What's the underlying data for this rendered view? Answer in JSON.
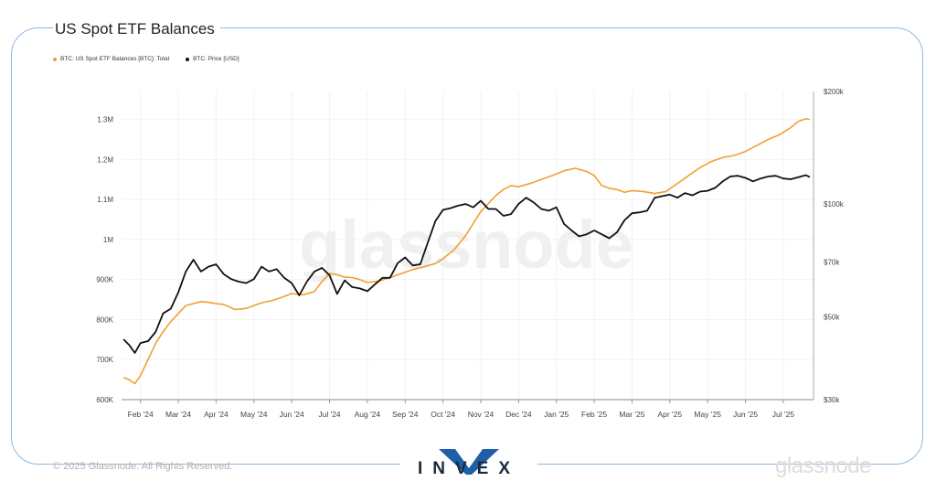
{
  "chart_data": {
    "type": "line",
    "title": "US Spot ETF Balances",
    "x_tick_labels": [
      "Feb '24",
      "Mar '24",
      "Apr '24",
      "May '24",
      "Jun '24",
      "Jul '24",
      "Aug '24",
      "Sep '24",
      "Oct '24",
      "Nov '24",
      "Dec '24",
      "Jan '25",
      "Feb '25",
      "Mar '25",
      "Apr '25",
      "May '25",
      "Jun '25",
      "Jul '25"
    ],
    "x_tick_months": [
      1,
      2,
      3,
      4,
      5,
      6,
      7,
      8,
      9,
      10,
      11,
      12,
      13,
      14,
      15,
      16,
      17,
      18
    ],
    "xlim": [
      0.5,
      18.8
    ],
    "left_axis": {
      "ticks": [
        "600K",
        "700K",
        "800K",
        "900K",
        "1M",
        "1.1M",
        "1.2M",
        "1.3M"
      ],
      "values": [
        600000,
        700000,
        800000,
        900000,
        1000000,
        1100000,
        1200000,
        1300000
      ],
      "ylim": [
        600000,
        1370000
      ]
    },
    "right_axis": {
      "scale": "log",
      "ticks": [
        "$30k",
        "$50k",
        "$70k",
        "$100k",
        "$200k"
      ],
      "values": [
        30000,
        50000,
        70000,
        100000,
        200000
      ],
      "ylim": [
        30000,
        200000
      ]
    },
    "series": [
      {
        "name": "BTC: US Spot ETF Balances [BTC]: Total",
        "axis": "left",
        "color": "#f0a030",
        "x": [
          0.55,
          0.7,
          0.85,
          1.0,
          1.2,
          1.4,
          1.6,
          1.8,
          2.0,
          2.2,
          2.4,
          2.6,
          2.8,
          3.0,
          3.2,
          3.5,
          3.8,
          4.0,
          4.2,
          4.5,
          4.8,
          5.0,
          5.3,
          5.6,
          5.8,
          6.0,
          6.2,
          6.4,
          6.6,
          6.8,
          7.0,
          7.3,
          7.6,
          7.9,
          8.2,
          8.5,
          8.8,
          9.0,
          9.3,
          9.6,
          9.8,
          10.0,
          10.2,
          10.4,
          10.6,
          10.8,
          11.0,
          11.3,
          11.6,
          11.9,
          12.2,
          12.5,
          12.8,
          13.0,
          13.2,
          13.4,
          13.6,
          13.8,
          14.0,
          14.3,
          14.6,
          14.9,
          15.2,
          15.5,
          15.8,
          16.1,
          16.4,
          16.7,
          17.0,
          17.3,
          17.6,
          17.9,
          18.2,
          18.4,
          18.6,
          18.7
        ],
        "values": [
          655000,
          650000,
          640000,
          660000,
          700000,
          740000,
          770000,
          795000,
          815000,
          835000,
          840000,
          845000,
          843000,
          840000,
          838000,
          825000,
          828000,
          835000,
          842000,
          848000,
          858000,
          865000,
          862000,
          870000,
          895000,
          915000,
          912000,
          906000,
          905000,
          900000,
          893000,
          896000,
          905000,
          915000,
          925000,
          932000,
          940000,
          952000,
          975000,
          1010000,
          1040000,
          1070000,
          1090000,
          1110000,
          1125000,
          1135000,
          1132000,
          1140000,
          1150000,
          1160000,
          1172000,
          1178000,
          1170000,
          1160000,
          1135000,
          1128000,
          1125000,
          1118000,
          1122000,
          1120000,
          1115000,
          1120000,
          1140000,
          1160000,
          1180000,
          1195000,
          1205000,
          1210000,
          1220000,
          1235000,
          1250000,
          1262000,
          1280000,
          1295000,
          1302000,
          1300000
        ]
      },
      {
        "name": "BTC: Price [USD]",
        "axis": "right",
        "color": "#111111",
        "x": [
          0.55,
          0.7,
          0.85,
          1.0,
          1.2,
          1.4,
          1.6,
          1.8,
          2.0,
          2.2,
          2.4,
          2.6,
          2.8,
          3.0,
          3.2,
          3.4,
          3.6,
          3.8,
          4.0,
          4.2,
          4.4,
          4.6,
          4.8,
          5.0,
          5.2,
          5.4,
          5.6,
          5.8,
          6.0,
          6.2,
          6.4,
          6.6,
          6.8,
          7.0,
          7.2,
          7.4,
          7.6,
          7.8,
          8.0,
          8.2,
          8.4,
          8.6,
          8.8,
          9.0,
          9.2,
          9.4,
          9.6,
          9.8,
          10.0,
          10.2,
          10.4,
          10.6,
          10.8,
          11.0,
          11.2,
          11.4,
          11.6,
          11.8,
          12.0,
          12.2,
          12.4,
          12.6,
          12.8,
          13.0,
          13.2,
          13.4,
          13.6,
          13.8,
          14.0,
          14.2,
          14.4,
          14.6,
          14.8,
          15.0,
          15.2,
          15.4,
          15.6,
          15.8,
          16.0,
          16.2,
          16.4,
          16.6,
          16.8,
          17.0,
          17.2,
          17.4,
          17.6,
          17.8,
          18.0,
          18.2,
          18.4,
          18.6,
          18.7
        ],
        "values": [
          43500,
          42000,
          40000,
          42500,
          43000,
          45500,
          51000,
          52500,
          58000,
          66000,
          71000,
          66000,
          68000,
          69000,
          65000,
          63000,
          62000,
          61500,
          63000,
          68000,
          66000,
          67000,
          63500,
          61500,
          57000,
          62000,
          66000,
          67500,
          64500,
          57500,
          62500,
          60000,
          59500,
          58500,
          61000,
          63500,
          63500,
          69500,
          72000,
          68500,
          69000,
          79000,
          90000,
          96500,
          97500,
          99000,
          100000,
          98000,
          102000,
          97000,
          97000,
          93000,
          94000,
          100000,
          104000,
          101000,
          97000,
          96000,
          98000,
          88500,
          85000,
          82000,
          83000,
          85000,
          83000,
          81000,
          84000,
          90500,
          94500,
          95000,
          96000,
          104000,
          105000,
          106000,
          104000,
          107000,
          105500,
          108000,
          108500,
          110500,
          115000,
          118500,
          119000,
          117500,
          115000,
          117000,
          118500,
          119000,
          117000,
          116500,
          118000,
          119500,
          118000
        ]
      }
    ],
    "grid": true,
    "legend_position": "top-left",
    "watermark": "glassnode"
  },
  "legend": [
    {
      "label": "BTC: US Spot ETF Balances [BTC]: Total",
      "color": "#f0a030"
    },
    {
      "label": "BTC: Price [USD]",
      "color": "#111111"
    }
  ],
  "footer": {
    "copyright": "© 2025 Glassnode. All Rights Reserved.",
    "brand": "glassnode",
    "logo_text": "INVEX"
  }
}
